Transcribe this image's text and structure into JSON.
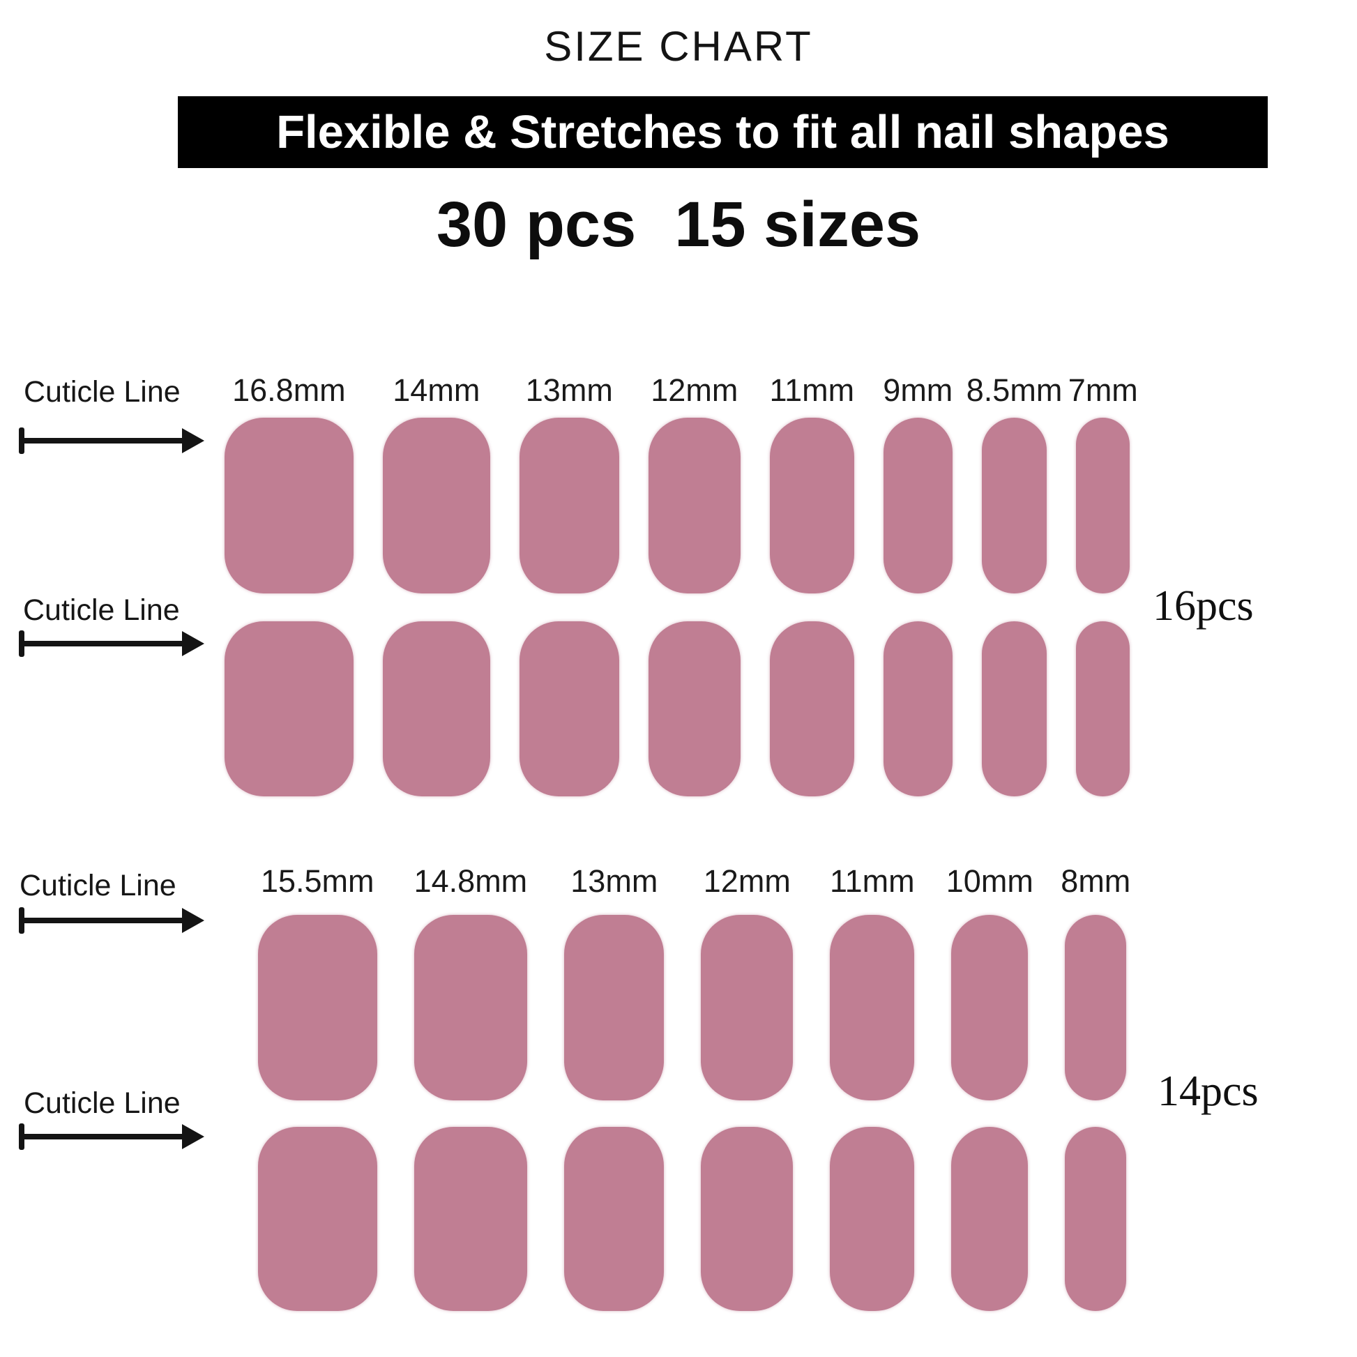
{
  "title": "SIZE CHART",
  "banner": {
    "text": "Flexible & Stretches to fit all nail shapes",
    "bg": "#000000",
    "fg": "#ffffff"
  },
  "subtitle": {
    "pieces": "30 pcs",
    "sizes": "15 sizes"
  },
  "cuticle_line_label": "Cuticle Line",
  "nail_color": "#C07E93",
  "groups": [
    {
      "pieces_label": "16pcs",
      "rows": 2,
      "sizes": [
        {
          "label": "16.8mm",
          "mm": 16.8
        },
        {
          "label": "14mm",
          "mm": 14
        },
        {
          "label": "13mm",
          "mm": 13
        },
        {
          "label": "12mm",
          "mm": 12
        },
        {
          "label": "11mm",
          "mm": 11
        },
        {
          "label": "9mm",
          "mm": 9
        },
        {
          "label": "8.5mm",
          "mm": 8.5
        },
        {
          "label": "7mm",
          "mm": 7
        }
      ]
    },
    {
      "pieces_label": "14pcs",
      "rows": 2,
      "sizes": [
        {
          "label": "15.5mm",
          "mm": 15.5
        },
        {
          "label": "14.8mm",
          "mm": 14.8
        },
        {
          "label": "13mm",
          "mm": 13
        },
        {
          "label": "12mm",
          "mm": 12
        },
        {
          "label": "11mm",
          "mm": 11
        },
        {
          "label": "10mm",
          "mm": 10
        },
        {
          "label": "8mm",
          "mm": 8
        }
      ]
    }
  ]
}
